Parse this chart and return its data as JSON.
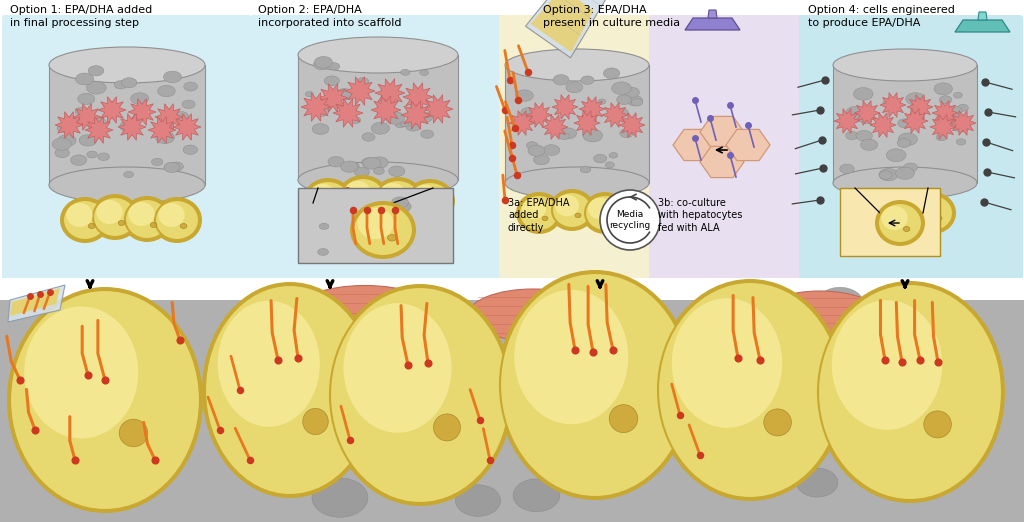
{
  "bg_blue": "#d6eef5",
  "bg_yellow": "#f5f0d0",
  "bg_purple": "#e8e0f0",
  "bg_blue2": "#c8e8f0",
  "scaffold_gray": "#c0c0c0",
  "scaffold_dark": "#909090",
  "scaffold_light": "#d0d0d0",
  "pore_gray": "#a8a8a8",
  "pore_dark": "#888888",
  "pink_cell": "#e08080",
  "pink_cell_edge": "#c06060",
  "yellow_fat": "#f8f0a0",
  "yellow_fat2": "#f0e060",
  "fat_edge": "#c8a830",
  "fat_inner": "#e8d870",
  "orange_fa": "#e87820",
  "red_dot": "#cc3820",
  "tissue_gray": "#b0b0b0",
  "tissue_pore": "#989898",
  "muscle_pink": "#e08870",
  "muscle_edge": "#c06850",
  "white_bg": "#ffffff",
  "label1": "Option 1: EPA/DHA added\nin final processing step",
  "label2": "Option 2: EPA/DHA\nincorporated into scaffold",
  "label3": "Option 3: EPA/DHA\npresent in culture media",
  "label4": "Option 4: cells engineered\nto produce EPA/DHA",
  "label3a": "3a: EPA/DHA\nadded\ndirectly",
  "label3b": "3b: co-culture\nwith hepatocytes\nfed with ALA",
  "label_media": "Media\nrecycling",
  "purple_flask_color": "#9080d0",
  "teal_flask_color": "#60c0b8",
  "beaker_color": "#d0dde8",
  "beaker_liquid": "#e8d070"
}
